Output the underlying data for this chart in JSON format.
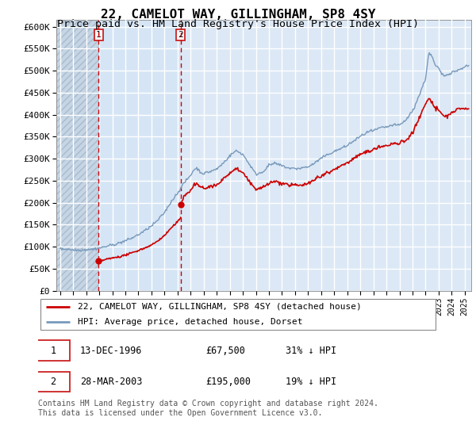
{
  "title": "22, CAMELOT WAY, GILLINGHAM, SP8 4SY",
  "subtitle": "Price paid vs. HM Land Registry's House Price Index (HPI)",
  "title_fontsize": 11.5,
  "subtitle_fontsize": 9.5,
  "ylabel_ticks": [
    "£0",
    "£50K",
    "£100K",
    "£150K",
    "£200K",
    "£250K",
    "£300K",
    "£350K",
    "£400K",
    "£450K",
    "£500K",
    "£550K",
    "£600K"
  ],
  "ytick_values": [
    0,
    50000,
    100000,
    150000,
    200000,
    250000,
    300000,
    350000,
    400000,
    450000,
    500000,
    550000,
    600000
  ],
  "ylim": [
    0,
    615000
  ],
  "xlim_start": 1993.7,
  "xlim_end": 2025.5,
  "hpi_color": "#7799bb",
  "price_color": "#cc0000",
  "bg_color": "#dce8f5",
  "hatch_region_color": "#c5d5e5",
  "grid_color": "#ffffff",
  "purchase1_x": 1996.95,
  "purchase1_y": 67500,
  "purchase2_x": 2003.24,
  "purchase2_y": 195000,
  "legend_line1": "22, CAMELOT WAY, GILLINGHAM, SP8 4SY (detached house)",
  "legend_line2": "HPI: Average price, detached house, Dorset",
  "purchase1_date": "13-DEC-1996",
  "purchase1_price": "£67,500",
  "purchase1_hpi": "31% ↓ HPI",
  "purchase2_date": "28-MAR-2003",
  "purchase2_price": "£195,000",
  "purchase2_hpi": "19% ↓ HPI",
  "footer": "Contains HM Land Registry data © Crown copyright and database right 2024.\nThis data is licensed under the Open Government Licence v3.0."
}
